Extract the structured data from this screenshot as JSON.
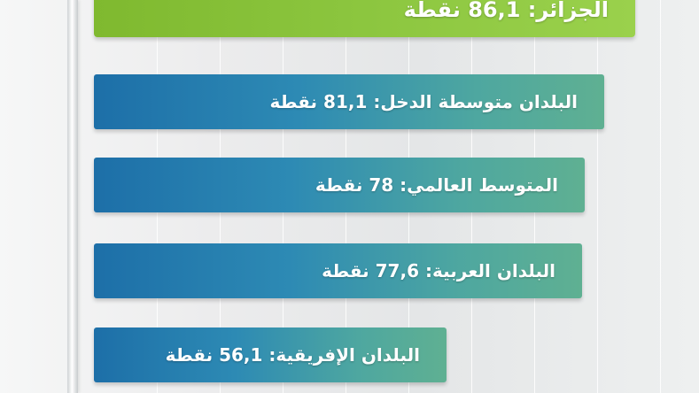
{
  "chart_data": {
    "type": "bar",
    "orientation": "horizontal",
    "unit": "نقطة",
    "xlim": [
      0,
      100
    ],
    "bars": [
      {
        "label": "الجزائر: 86,1 نقطة",
        "name": "الجزائر",
        "value": 86.1,
        "highlight": true
      },
      {
        "label": "البلدان متوسطة الدخل: 81,1 نقطة",
        "name": "البلدان متوسطة الدخل",
        "value": 81.1,
        "highlight": false
      },
      {
        "label": "المتوسط العالمي: 78 نقطة",
        "name": "المتوسط العالمي",
        "value": 78,
        "highlight": false
      },
      {
        "label": "البلدان العربية: 77,6 نقطة",
        "name": "البلدان العربية",
        "value": 77.6,
        "highlight": false
      },
      {
        "label": "البلدان الإفريقية: 56,1 نقطة",
        "name": "البلدان الإفريقية",
        "value": 56.1,
        "highlight": false
      }
    ],
    "grid": true
  },
  "colors": {
    "highlight": "#8cc63f",
    "bar": "#2a7fb0",
    "bar_end": "#5fb092",
    "background": "#e9ebec"
  }
}
